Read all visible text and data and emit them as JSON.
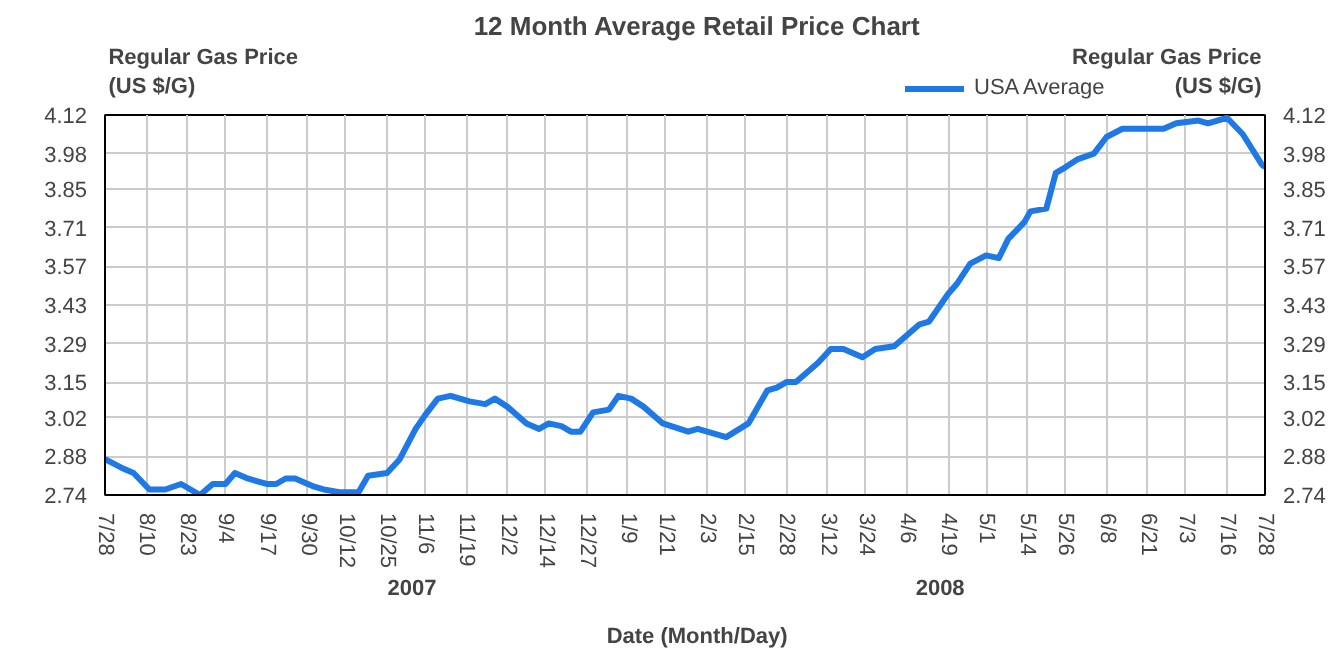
{
  "chart_data": {
    "type": "line",
    "title": "12 Month Average Retail Price Chart",
    "xlabel": "Date (Month/Day)",
    "ylabel": "Regular Gas Price (US $/G)",
    "y2label": "Regular Gas Price (US $/G)",
    "x": [
      "2007-07-28",
      "2007-08-02",
      "2007-08-06",
      "2007-08-11",
      "2007-08-16",
      "2007-08-21",
      "2007-08-27",
      "2007-08-31",
      "2007-09-04",
      "2007-09-07",
      "2007-09-11",
      "2007-09-17",
      "2007-09-20",
      "2007-09-23",
      "2007-09-26",
      "2007-10-02",
      "2007-10-05",
      "2007-10-10",
      "2007-10-13",
      "2007-10-16",
      "2007-10-19",
      "2007-10-25",
      "2007-10-29",
      "2007-11-03",
      "2007-11-06",
      "2007-11-10",
      "2007-11-14",
      "2007-11-20",
      "2007-11-25",
      "2007-11-28",
      "2007-12-02",
      "2007-12-08",
      "2007-12-12",
      "2007-12-15",
      "2007-12-19",
      "2007-12-22",
      "2007-12-25",
      "2007-12-29",
      "2008-01-03",
      "2008-01-06",
      "2008-01-10",
      "2008-01-14",
      "2008-01-20",
      "2008-01-28",
      "2008-01-31",
      "2008-02-09",
      "2008-02-16",
      "2008-02-22",
      "2008-02-25",
      "2008-02-28",
      "2008-03-02",
      "2008-03-09",
      "2008-03-13",
      "2008-03-17",
      "2008-03-23",
      "2008-03-27",
      "2008-04-02",
      "2008-04-05",
      "2008-04-10",
      "2008-04-13",
      "2008-04-19",
      "2008-04-22",
      "2008-04-26",
      "2008-05-01",
      "2008-05-05",
      "2008-05-08",
      "2008-05-13",
      "2008-05-15",
      "2008-05-20",
      "2008-05-23",
      "2008-05-26",
      "2008-05-30",
      "2008-06-04",
      "2008-06-08",
      "2008-06-13",
      "2008-06-19",
      "2008-06-26",
      "2008-06-30",
      "2008-07-07",
      "2008-07-10",
      "2008-07-16",
      "2008-07-21",
      "2008-07-27",
      "2008-07-28"
    ],
    "series": [
      {
        "name": "USA Average",
        "color": "#1e78e6",
        "values": [
          2.87,
          2.84,
          2.82,
          2.76,
          2.76,
          2.78,
          2.74,
          2.78,
          2.78,
          2.82,
          2.8,
          2.78,
          2.78,
          2.8,
          2.8,
          2.77,
          2.76,
          2.75,
          2.75,
          2.75,
          2.81,
          2.82,
          2.87,
          2.98,
          3.03,
          3.09,
          3.1,
          3.08,
          3.07,
          3.09,
          3.06,
          3.0,
          2.98,
          3.0,
          2.99,
          2.97,
          2.97,
          3.04,
          3.05,
          3.1,
          3.09,
          3.06,
          3.0,
          2.97,
          2.98,
          2.95,
          3.0,
          3.12,
          3.13,
          3.15,
          3.15,
          3.22,
          3.27,
          3.27,
          3.24,
          3.27,
          3.28,
          3.31,
          3.36,
          3.37,
          3.47,
          3.51,
          3.58,
          3.61,
          3.6,
          3.67,
          3.73,
          3.77,
          3.78,
          3.91,
          3.93,
          3.96,
          3.98,
          4.04,
          4.07,
          4.07,
          4.07,
          4.09,
          4.1,
          4.09,
          4.11,
          4.05,
          3.94,
          3.93
        ]
      }
    ],
    "xlim": [
      "2007-07-28",
      "2008-07-28"
    ],
    "xticks": [
      {
        "value": "2007-07-28",
        "label": "7/28"
      },
      {
        "value": "2007-08-10",
        "label": "8/10"
      },
      {
        "value": "2007-08-23",
        "label": "8/23"
      },
      {
        "value": "2007-09-04",
        "label": "9/4"
      },
      {
        "value": "2007-09-17",
        "label": "9/17"
      },
      {
        "value": "2007-09-30",
        "label": "9/30"
      },
      {
        "value": "2007-10-12",
        "label": "10/12"
      },
      {
        "value": "2007-10-25",
        "label": "10/25"
      },
      {
        "value": "2007-11-06",
        "label": "11/6"
      },
      {
        "value": "2007-11-19",
        "label": "11/19"
      },
      {
        "value": "2007-12-02",
        "label": "12/2"
      },
      {
        "value": "2007-12-14",
        "label": "12/14"
      },
      {
        "value": "2007-12-27",
        "label": "12/27"
      },
      {
        "value": "2008-01-09",
        "label": "1/9"
      },
      {
        "value": "2008-01-21",
        "label": "1/21"
      },
      {
        "value": "2008-02-03",
        "label": "2/3"
      },
      {
        "value": "2008-02-15",
        "label": "2/15"
      },
      {
        "value": "2008-02-28",
        "label": "2/28"
      },
      {
        "value": "2008-03-12",
        "label": "3/12"
      },
      {
        "value": "2008-03-24",
        "label": "3/24"
      },
      {
        "value": "2008-04-06",
        "label": "4/6"
      },
      {
        "value": "2008-04-19",
        "label": "4/19"
      },
      {
        "value": "2008-05-01",
        "label": "5/1"
      },
      {
        "value": "2008-05-14",
        "label": "5/14"
      },
      {
        "value": "2008-05-26",
        "label": "5/26"
      },
      {
        "value": "2008-06-08",
        "label": "6/8"
      },
      {
        "value": "2008-06-21",
        "label": "6/21"
      },
      {
        "value": "2008-07-03",
        "label": "7/3"
      },
      {
        "value": "2008-07-16",
        "label": "7/16"
      },
      {
        "value": "2008-07-28",
        "label": "7/28"
      }
    ],
    "ylim": [
      2.74,
      4.12
    ],
    "yticks": [
      2.74,
      2.88,
      3.02,
      3.15,
      3.29,
      3.43,
      3.57,
      3.71,
      3.85,
      3.98,
      4.12
    ],
    "y2lim": [
      2.74,
      4.12
    ],
    "y2ticks": [
      2.74,
      2.88,
      3.02,
      3.15,
      3.29,
      3.43,
      3.57,
      3.71,
      3.85,
      3.98,
      4.12
    ],
    "annotations": [
      "2007",
      "2008"
    ],
    "grid": true,
    "legend": "top",
    "marker": "none",
    "line_style": "solid"
  }
}
